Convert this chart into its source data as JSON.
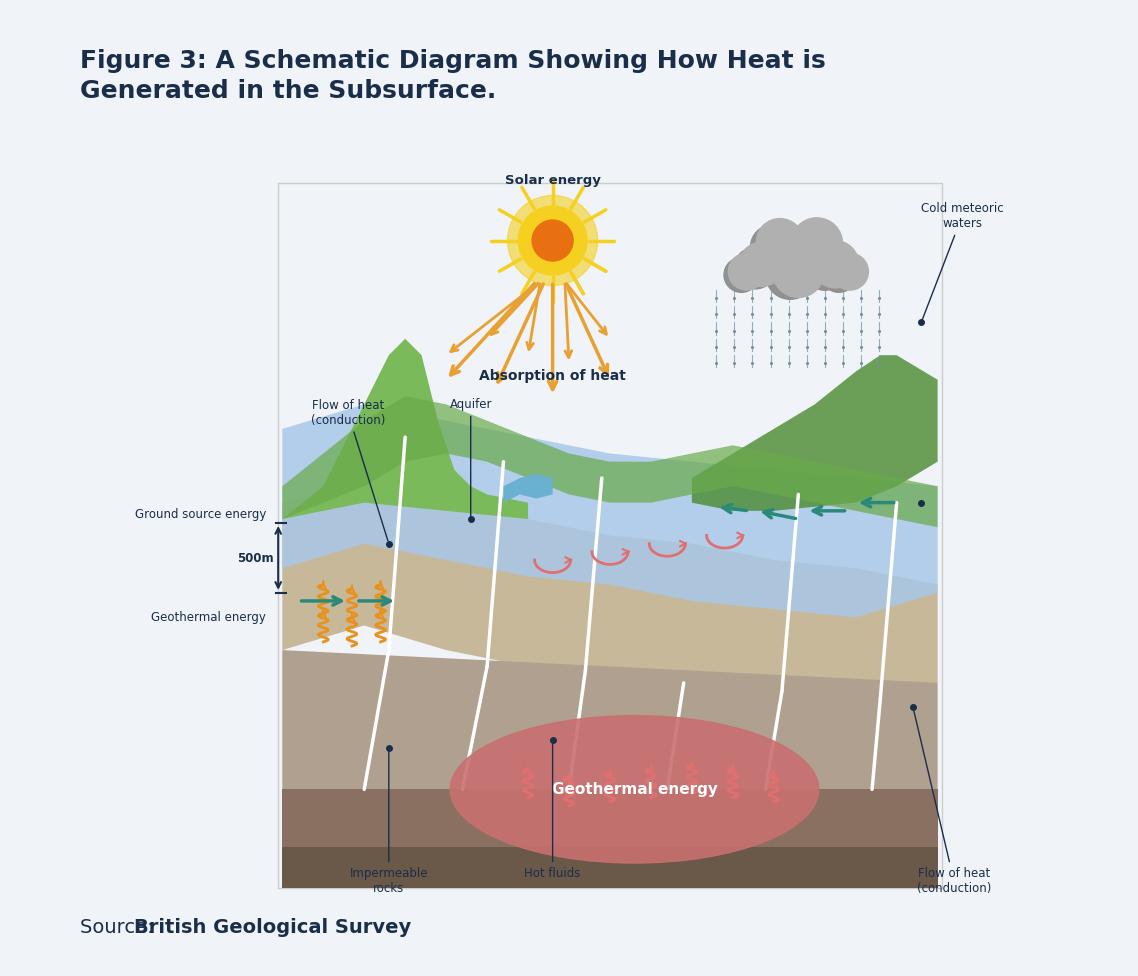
{
  "title": "Figure 3: A Schematic Diagram Showing How Heat is\nGenerated in the Subsurface.",
  "source_text_normal": "Source: ",
  "source_text_bold": "British Geological Survey",
  "title_color": "#1a2e4a",
  "bg_color": "#ffffff",
  "title_fontsize": 18,
  "source_fontsize": 14,
  "labels": {
    "solar_energy": "Solar energy",
    "absorption_of_heat": "Absorption of heat",
    "cold_meteoric_waters": "Cold meteoric\nwaters",
    "flow_of_heat_conduction_left": "Flow of heat\n(conduction)",
    "aquifer": "Aquifer",
    "ground_source_energy": "Ground source energy",
    "500m": "500m",
    "geothermal_energy_label": "Geothermal energy",
    "geothermal_energy_center": "Geothermal energy",
    "impermeable_rocks": "Impermeable\nrocks",
    "hot_fluids": "Hot fluids",
    "flow_of_heat_conduction_right": "Flow of heat\n(conduction)"
  },
  "colors": {
    "sky": "#f0f4f8",
    "ground_green": "#6aaa4a",
    "ground_green_dark": "#4a8a30",
    "hill_green": "#7aba5a",
    "river_blue": "#6ab0d0",
    "upper_rock": "#c8b89a",
    "aquifer_layer": "#a8c8e8",
    "mid_rock": "#b0a090",
    "lower_rock": "#8a7060",
    "geothermal_blob": "#c87070",
    "geothermal_blob_edge": "#d08080",
    "white_lines": "#ffffff",
    "sun_outer": "#f5d020",
    "sun_inner": "#e87010",
    "sun_rays": "#e8a030",
    "cloud_color": "#b0b0b0",
    "cloud_dark": "#909090",
    "rain_color": "#7090a0",
    "orange_wavy": "#e8921e",
    "pink_wavy": "#e07070",
    "teal_arrow": "#2a8a7a",
    "pink_arrow": "#e07070",
    "text_dark": "#1a2e4a",
    "annotation_dot": "#1a2e4a"
  }
}
